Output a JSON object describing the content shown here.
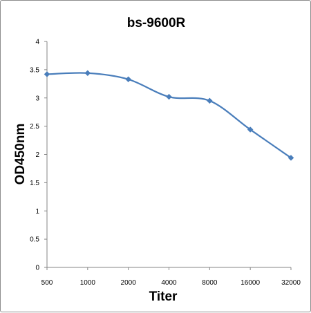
{
  "chart_data": {
    "type": "line",
    "title": "bs-9600R",
    "xlabel": "Titer",
    "ylabel": "OD450nm",
    "categories": [
      "500",
      "1000",
      "2000",
      "4000",
      "8000",
      "16000",
      "32000"
    ],
    "y_ticks": [
      "0",
      "0.5",
      "1",
      "1.5",
      "2",
      "2.5",
      "3",
      "3.5",
      "4"
    ],
    "ylim": [
      0,
      4
    ],
    "grid": false,
    "legend": "none",
    "series": [
      {
        "values": [
          3.42,
          3.44,
          3.33,
          3.02,
          2.95,
          2.44,
          1.94
        ],
        "color": "#4a7ebb"
      }
    ]
  }
}
